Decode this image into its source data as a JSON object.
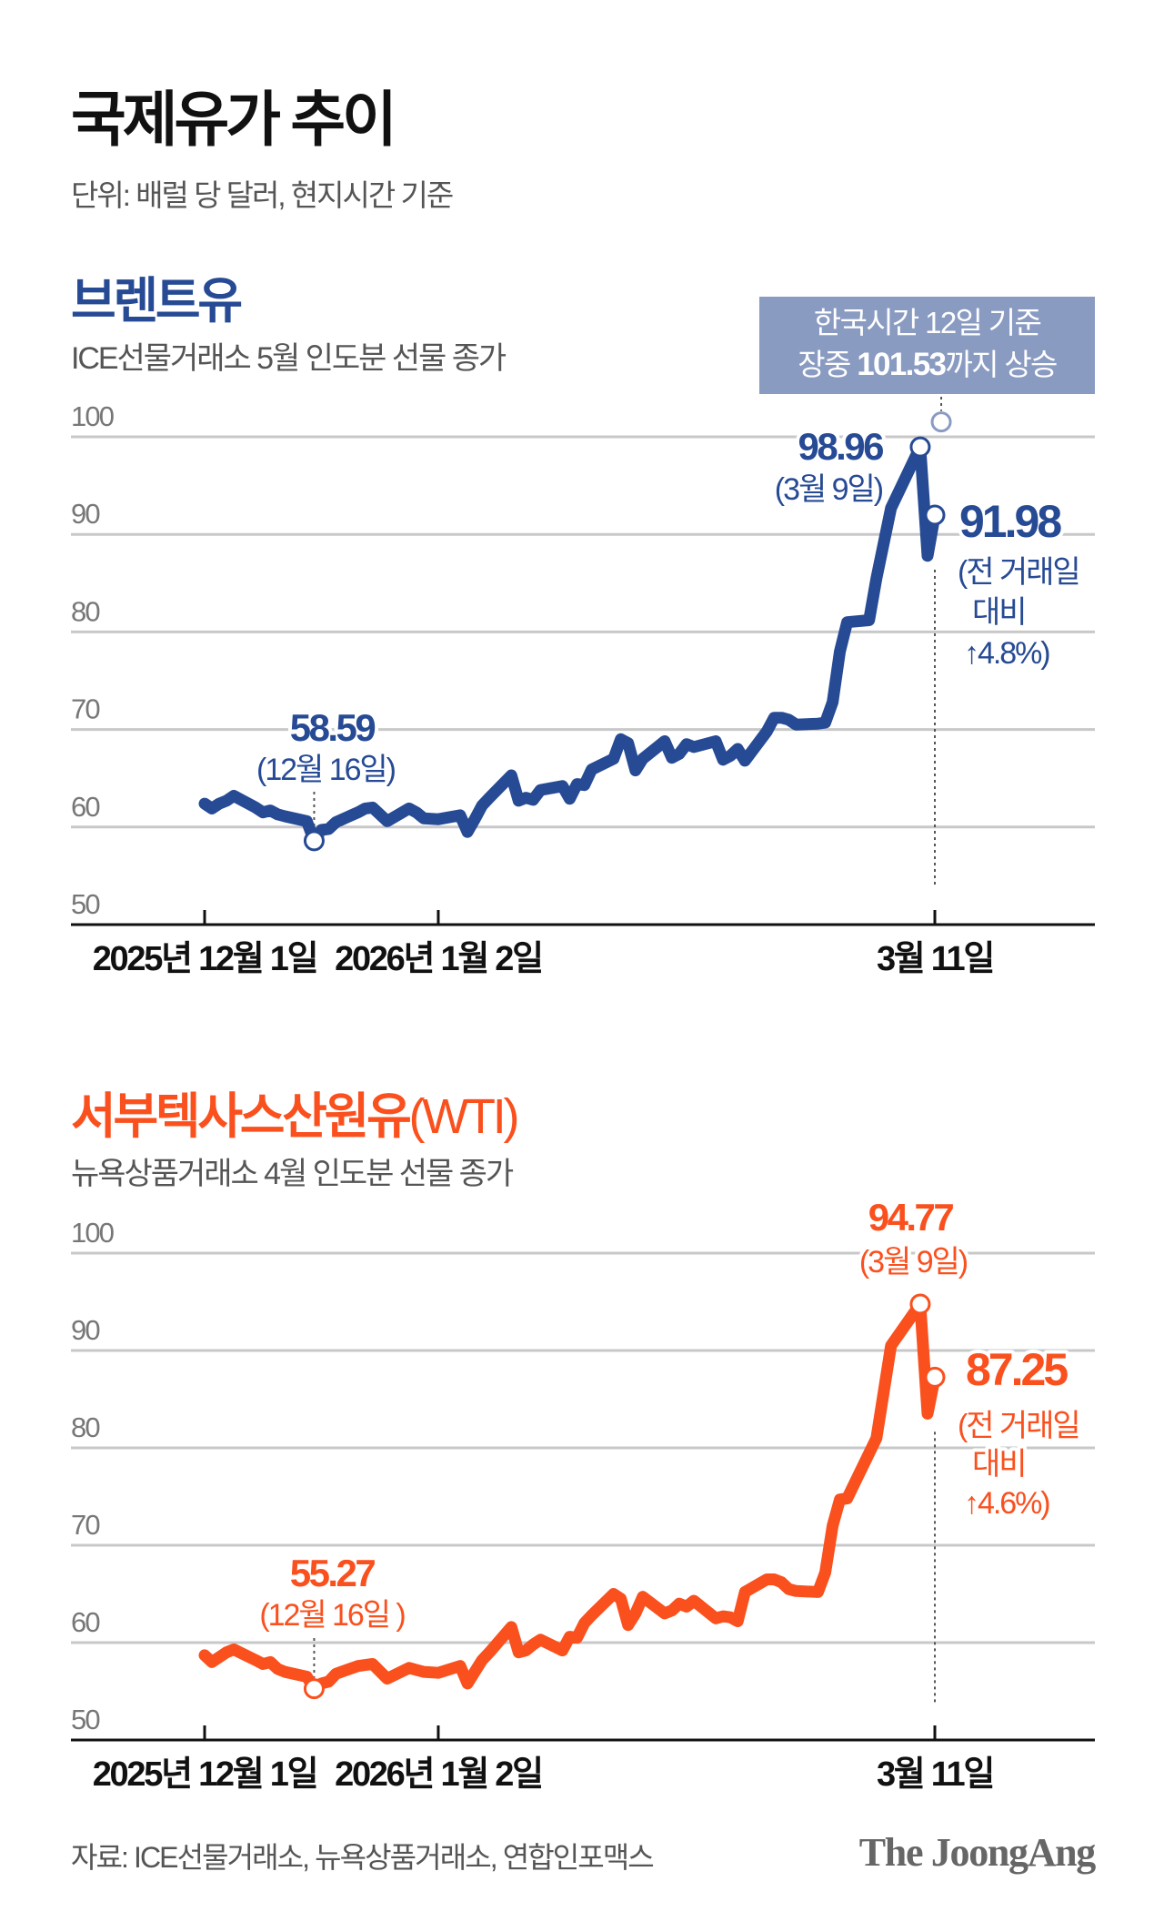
{
  "title": "국제유가 추이",
  "unit_note": "단위: 배럴 당 달러, 현지시간 기준",
  "source": "자료: ICE선물거래소, 뉴욕상품거래소, 연합인포맥스",
  "logo": "The JoongAng",
  "colors": {
    "brent": "#264a94",
    "wti": "#fa501e",
    "callout_bg": "#8a9bc2",
    "grid": "#c8c8c8",
    "axis": "#111111",
    "kst_point": "#8a9bc2"
  },
  "brent": {
    "heading": "브렌트유",
    "subtitle": "ICE선물거래소 5월 인도분 선물 종가",
    "callout": {
      "line1": "한국시간 12일 기준",
      "line2_prefix": "장중 ",
      "line2_value": "101.53",
      "line2_suffix": "까지 상승"
    },
    "annotations": {
      "low_value": "58.59",
      "low_date": "(12월 16일)",
      "peak_value": "98.96",
      "peak_date": "(3월 9일)",
      "last_value": "91.98",
      "last_note1": "(전 거래일",
      "last_note2": "대비",
      "last_note3": "↑4.8%)"
    }
  },
  "wti": {
    "heading": "서부텍사스산원유",
    "heading_suffix": "(WTI)",
    "subtitle": "뉴욕상품거래소 4월 인도분 선물 종가",
    "annotations": {
      "low_value": "55.27",
      "low_date": "(12월 16일 )",
      "peak_value": "94.77",
      "peak_date": "(3월 9일)",
      "last_value": "87.25",
      "last_note1": "(전 거래일",
      "last_note2": "대비",
      "last_note3": "↑4.6%)"
    }
  },
  "chart_data": [
    {
      "type": "line",
      "title": "브렌트유",
      "ylim": [
        50,
        100
      ],
      "yticks": [
        "100",
        "90",
        "80",
        "70",
        "60",
        "50"
      ],
      "xticks": [
        {
          "date": "2025-12-01",
          "label": "2025년 12월 1일"
        },
        {
          "date": "2026-01-02",
          "label": "2026년 1월 2일"
        },
        {
          "date": "2026-03-11",
          "label": "3월 11일"
        }
      ],
      "grid": true,
      "intraday_high": {
        "date": "2026-03-12",
        "value": 101.53
      },
      "points": [
        [
          "2025-12-01",
          62.4
        ],
        [
          "2025-12-02",
          61.9
        ],
        [
          "2025-12-03",
          62.4
        ],
        [
          "2025-12-04",
          62.7
        ],
        [
          "2025-12-05",
          63.2
        ],
        [
          "2025-12-08",
          62.0
        ],
        [
          "2025-12-09",
          61.5
        ],
        [
          "2025-12-10",
          61.7
        ],
        [
          "2025-12-11",
          61.3
        ],
        [
          "2025-12-12",
          61.1
        ],
        [
          "2025-12-15",
          60.6
        ],
        [
          "2025-12-16",
          58.59
        ],
        [
          "2025-12-17",
          59.7
        ],
        [
          "2025-12-18",
          59.8
        ],
        [
          "2025-12-19",
          60.5
        ],
        [
          "2025-12-22",
          61.5
        ],
        [
          "2025-12-23",
          61.9
        ],
        [
          "2025-12-24",
          62.0
        ],
        [
          "2025-12-26",
          60.6
        ],
        [
          "2025-12-29",
          61.9
        ],
        [
          "2025-12-30",
          61.5
        ],
        [
          "2025-12-31",
          60.9
        ],
        [
          "2026-01-02",
          60.8
        ],
        [
          "2026-01-05",
          61.2
        ],
        [
          "2026-01-06",
          59.5
        ],
        [
          "2026-01-07",
          60.8
        ],
        [
          "2026-01-08",
          62.2
        ],
        [
          "2026-01-09",
          63.0
        ],
        [
          "2026-01-12",
          65.3
        ],
        [
          "2026-01-13",
          62.7
        ],
        [
          "2026-01-14",
          63.0
        ],
        [
          "2026-01-15",
          62.8
        ],
        [
          "2026-01-16",
          63.8
        ],
        [
          "2026-01-19",
          64.2
        ],
        [
          "2026-01-20",
          62.9
        ],
        [
          "2026-01-21",
          64.4
        ],
        [
          "2026-01-22",
          64.3
        ],
        [
          "2026-01-23",
          65.9
        ],
        [
          "2026-01-26",
          67.0
        ],
        [
          "2026-01-27",
          69.0
        ],
        [
          "2026-01-28",
          68.6
        ],
        [
          "2026-01-29",
          65.8
        ],
        [
          "2026-01-30",
          67.0
        ],
        [
          "2026-02-02",
          68.8
        ],
        [
          "2026-02-03",
          67.1
        ],
        [
          "2026-02-04",
          67.5
        ],
        [
          "2026-02-05",
          68.5
        ],
        [
          "2026-02-06",
          68.2
        ],
        [
          "2026-02-09",
          68.8
        ],
        [
          "2026-02-10",
          66.9
        ],
        [
          "2026-02-11",
          67.3
        ],
        [
          "2026-02-12",
          68.0
        ],
        [
          "2026-02-13",
          66.8
        ],
        [
          "2026-02-16",
          69.8
        ],
        [
          "2026-02-17",
          71.2
        ],
        [
          "2026-02-18",
          71.2
        ],
        [
          "2026-02-19",
          71.0
        ],
        [
          "2026-02-20",
          70.5
        ],
        [
          "2026-02-23",
          70.6
        ],
        [
          "2026-02-24",
          70.7
        ],
        [
          "2026-02-25",
          72.8
        ],
        [
          "2026-02-26",
          78.0
        ],
        [
          "2026-02-27",
          81.0
        ],
        [
          "2026-03-02",
          81.2
        ],
        [
          "2026-03-03",
          85.5
        ],
        [
          "2026-03-05",
          92.7
        ],
        [
          "2026-03-09",
          98.96
        ],
        [
          "2026-03-10",
          87.8
        ],
        [
          "2026-03-11",
          91.98
        ]
      ]
    },
    {
      "type": "line",
      "title": "서부텍사스산원유(WTI)",
      "ylim": [
        50,
        100
      ],
      "yticks": [
        "100",
        "90",
        "80",
        "70",
        "60",
        "50"
      ],
      "xticks": [
        {
          "date": "2025-12-01",
          "label": "2025년 12월 1일"
        },
        {
          "date": "2026-01-02",
          "label": "2026년 1월 2일"
        },
        {
          "date": "2026-03-11",
          "label": "3월 11일"
        }
      ],
      "grid": true,
      "points": [
        [
          "2025-12-01",
          58.7
        ],
        [
          "2025-12-02",
          58.0
        ],
        [
          "2025-12-03",
          58.5
        ],
        [
          "2025-12-04",
          59.0
        ],
        [
          "2025-12-05",
          59.3
        ],
        [
          "2025-12-08",
          58.2
        ],
        [
          "2025-12-09",
          57.8
        ],
        [
          "2025-12-10",
          58.0
        ],
        [
          "2025-12-11",
          57.3
        ],
        [
          "2025-12-12",
          57.0
        ],
        [
          "2025-12-15",
          56.5
        ],
        [
          "2025-12-16",
          55.27
        ],
        [
          "2025-12-17",
          55.8
        ],
        [
          "2025-12-18",
          56.0
        ],
        [
          "2025-12-19",
          56.8
        ],
        [
          "2025-12-22",
          57.6
        ],
        [
          "2025-12-23",
          57.7
        ],
        [
          "2025-12-24",
          57.8
        ],
        [
          "2025-12-26",
          56.3
        ],
        [
          "2025-12-29",
          57.4
        ],
        [
          "2025-12-30",
          57.2
        ],
        [
          "2025-12-31",
          57.0
        ],
        [
          "2026-01-02",
          56.9
        ],
        [
          "2026-01-05",
          57.6
        ],
        [
          "2026-01-06",
          55.8
        ],
        [
          "2026-01-07",
          57.0
        ],
        [
          "2026-01-08",
          58.2
        ],
        [
          "2026-01-09",
          59.0
        ],
        [
          "2026-01-12",
          61.6
        ],
        [
          "2026-01-13",
          59.0
        ],
        [
          "2026-01-14",
          59.2
        ],
        [
          "2026-01-15",
          59.8
        ],
        [
          "2026-01-16",
          60.3
        ],
        [
          "2026-01-19",
          59.2
        ],
        [
          "2026-01-20",
          60.6
        ],
        [
          "2026-01-21",
          60.5
        ],
        [
          "2026-01-22",
          62.0
        ],
        [
          "2026-01-23",
          62.8
        ],
        [
          "2026-01-26",
          65.0
        ],
        [
          "2026-01-27",
          64.5
        ],
        [
          "2026-01-28",
          61.8
        ],
        [
          "2026-01-29",
          63.0
        ],
        [
          "2026-01-30",
          64.7
        ],
        [
          "2026-02-02",
          63.0
        ],
        [
          "2026-02-03",
          63.3
        ],
        [
          "2026-02-04",
          64.0
        ],
        [
          "2026-02-05",
          63.7
        ],
        [
          "2026-02-06",
          64.3
        ],
        [
          "2026-02-09",
          62.5
        ],
        [
          "2026-02-10",
          62.7
        ],
        [
          "2026-02-11",
          62.6
        ],
        [
          "2026-02-12",
          62.2
        ],
        [
          "2026-02-13",
          65.2
        ],
        [
          "2026-02-16",
          66.5
        ],
        [
          "2026-02-17",
          66.5
        ],
        [
          "2026-02-18",
          66.2
        ],
        [
          "2026-02-19",
          65.5
        ],
        [
          "2026-02-20",
          65.3
        ],
        [
          "2026-02-23",
          65.2
        ],
        [
          "2026-02-24",
          67.2
        ],
        [
          "2026-02-25",
          72.0
        ],
        [
          "2026-02-26",
          74.7
        ],
        [
          "2026-02-27",
          74.8
        ],
        [
          "2026-03-03",
          81.0
        ],
        [
          "2026-03-05",
          90.5
        ],
        [
          "2026-03-09",
          94.77
        ],
        [
          "2026-03-10",
          83.5
        ],
        [
          "2026-03-11",
          87.25
        ]
      ]
    }
  ]
}
